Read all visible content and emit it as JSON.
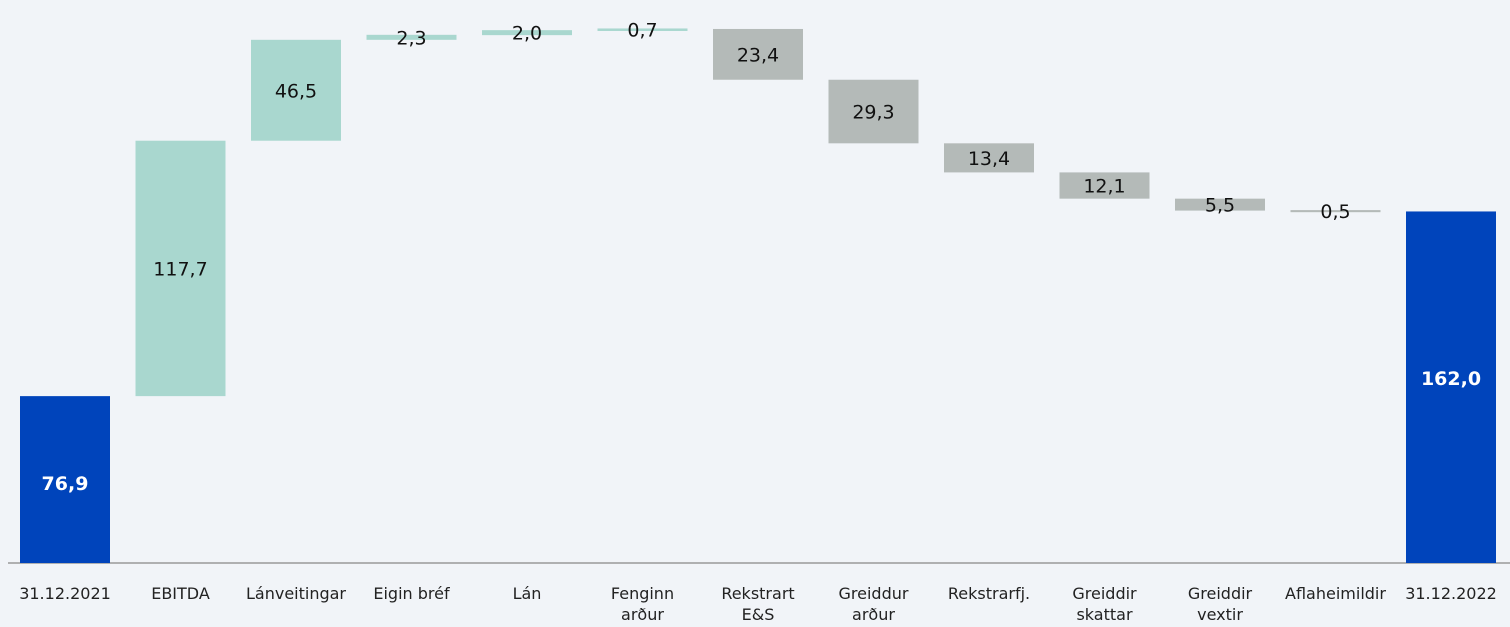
{
  "colors": {
    "total": "#0044bb",
    "increase": "#a9d7cf",
    "decrease": "#b4bab8",
    "axis": "#999999",
    "background": "#f1f4f8"
  },
  "chart_data": {
    "type": "bar",
    "subtype": "waterfall",
    "title": "",
    "xlabel": "",
    "ylabel": "",
    "ylim": [
      0,
      250
    ],
    "grid": false,
    "legend": "none",
    "bars": [
      {
        "category": [
          "31.12.2021"
        ],
        "label": "76,9",
        "kind": "total",
        "start": 0,
        "end": 76.9
      },
      {
        "category": [
          "EBITDA"
        ],
        "label": "117,7",
        "kind": "increase",
        "start": 76.9,
        "end": 194.6
      },
      {
        "category": [
          "Lánveitingar"
        ],
        "label": "46,5",
        "kind": "increase",
        "start": 194.6,
        "end": 241.1
      },
      {
        "category": [
          "Eigin bréf"
        ],
        "label": "2,3",
        "kind": "increase",
        "start": 241.1,
        "end": 243.4
      },
      {
        "category": [
          "Lán"
        ],
        "label": "2,0",
        "kind": "increase",
        "start": 243.4,
        "end": 245.4
      },
      {
        "category": [
          "Fenginn",
          "arður"
        ],
        "label": "0,7",
        "kind": "increase",
        "start": 245.4,
        "end": 246.1
      },
      {
        "category": [
          "Rekstrart",
          "E&S"
        ],
        "label": "23,4",
        "kind": "decrease",
        "start": 246.1,
        "end": 222.7
      },
      {
        "category": [
          "Greiddur",
          "arður"
        ],
        "label": "29,3",
        "kind": "decrease",
        "start": 222.7,
        "end": 193.4
      },
      {
        "category": [
          "Rekstrarfj."
        ],
        "label": "13,4",
        "kind": "decrease",
        "start": 193.4,
        "end": 180.0
      },
      {
        "category": [
          "Greiddir",
          "skattar"
        ],
        "label": "12,1",
        "kind": "decrease",
        "start": 180.0,
        "end": 167.9
      },
      {
        "category": [
          "Greiddir",
          "vextir"
        ],
        "label": "5,5",
        "kind": "decrease",
        "start": 167.9,
        "end": 162.4
      },
      {
        "category": [
          "Aflaheimildir"
        ],
        "label": "0,5",
        "kind": "decrease",
        "start": 162.4,
        "end": 161.9
      },
      {
        "category": [
          "31.12.2022"
        ],
        "label": "162,0",
        "kind": "total",
        "start": 0,
        "end": 162.0
      }
    ]
  }
}
